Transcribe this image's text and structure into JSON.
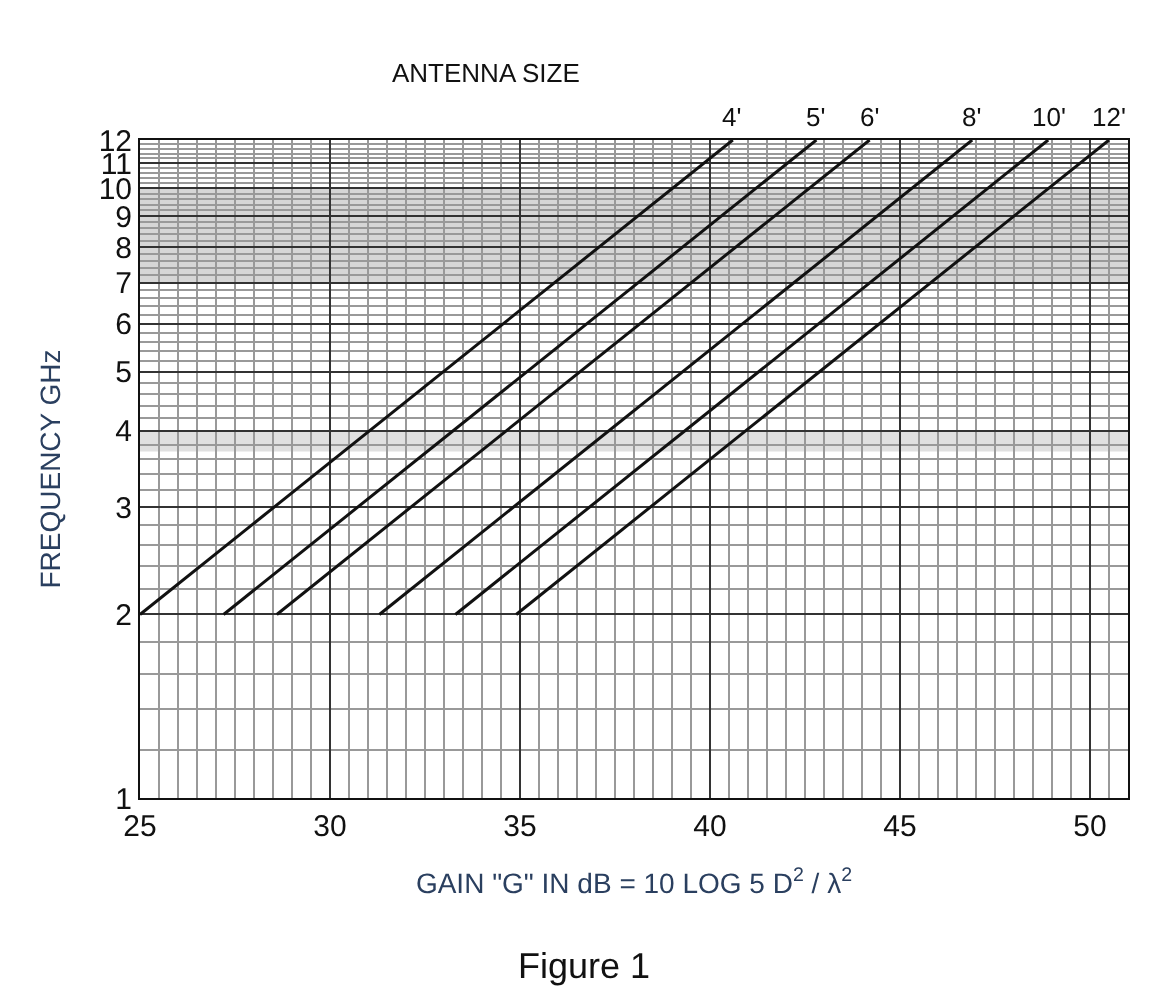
{
  "chart_data": {
    "type": "line",
    "title": "Figure 1",
    "xlabel": "GAIN \"G\" IN dB = 10 LOG 5 D$^{2}$ / λ$^{2}$",
    "ylabel": "FREQUENCY GHz",
    "annotations": [
      "ANTENNA SIZE"
    ],
    "series": [
      {
        "name": "4'",
        "color": "#111111",
        "x": [
          25.0,
          40.6
        ],
        "values": [
          2,
          12
        ]
      },
      {
        "name": "5'",
        "color": "#111111",
        "x": [
          27.2,
          42.8
        ],
        "values": [
          2,
          12
        ]
      },
      {
        "name": "6'",
        "color": "#111111",
        "x": [
          28.6,
          44.2
        ],
        "values": [
          2,
          12
        ]
      },
      {
        "name": "8'",
        "color": "#111111",
        "x": [
          31.3,
          46.9
        ],
        "values": [
          2,
          12
        ]
      },
      {
        "name": "10'",
        "color": "#111111",
        "x": [
          33.3,
          48.9
        ],
        "values": [
          2,
          12
        ]
      },
      {
        "name": "12'",
        "color": "#111111",
        "x": [
          34.9,
          50.5
        ],
        "values": [
          2,
          12
        ]
      }
    ],
    "bands": [
      {
        "axis": "y",
        "from": 7,
        "to": 10,
        "color": "#bbbbbb"
      },
      {
        "axis": "y",
        "from": 3.7,
        "to": 4,
        "color": "#cccccc"
      }
    ],
    "xlim": [
      25,
      51
    ],
    "xticks": [
      25,
      30,
      35,
      40,
      45,
      50
    ],
    "ylim": [
      1,
      12
    ],
    "yticks": [
      1,
      2,
      3,
      4,
      5,
      6,
      7,
      8,
      9,
      10,
      11,
      12
    ],
    "log": "y",
    "grid": true,
    "legend": false,
    "marker": "none",
    "line_style": "solid"
  }
}
